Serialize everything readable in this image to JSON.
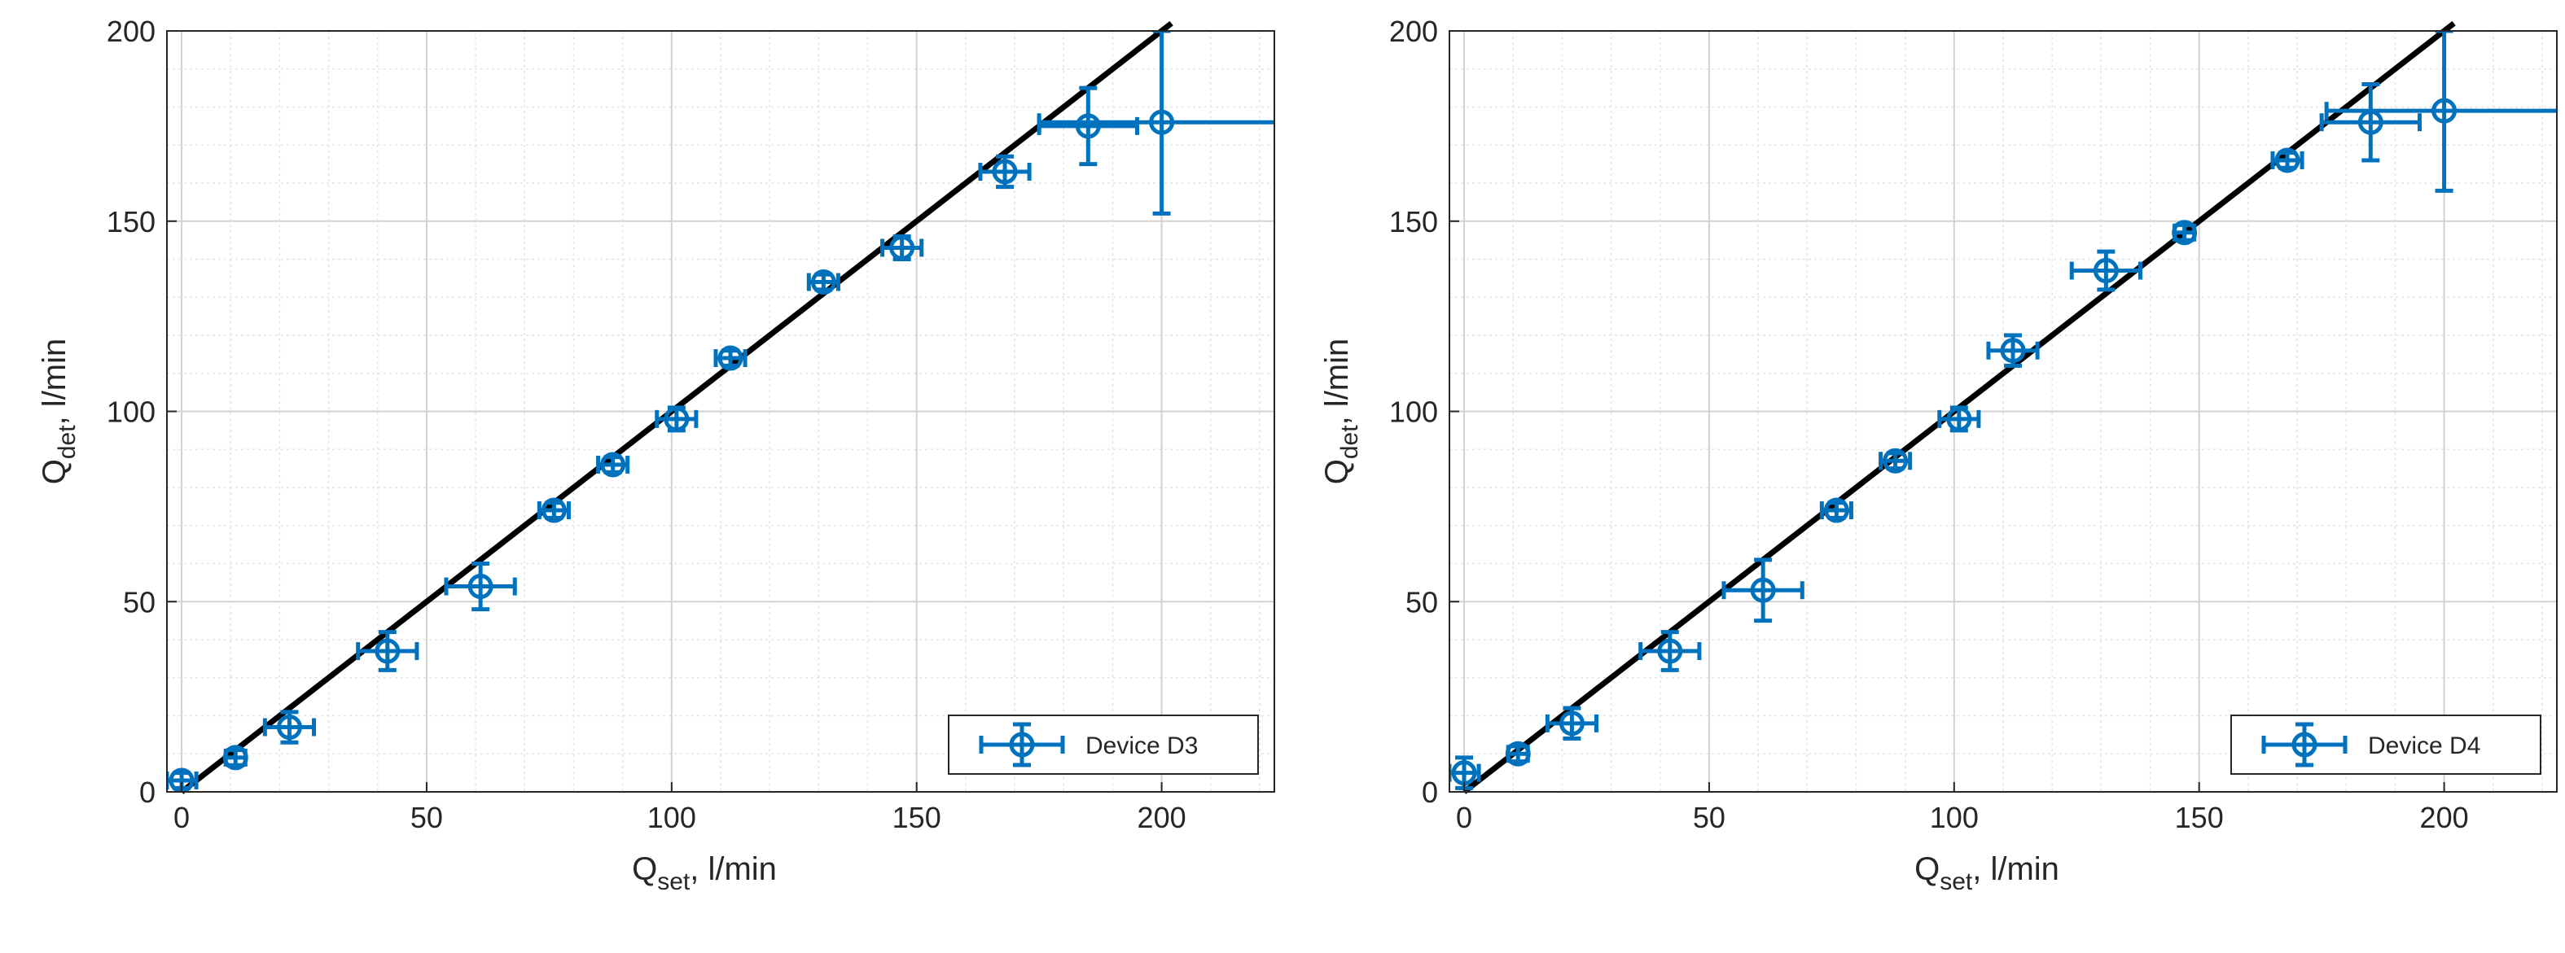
{
  "chart_data": [
    {
      "type": "scatter",
      "title": "",
      "xlabel": {
        "main": "Q",
        "sub": "set",
        "rest": ", l/min"
      },
      "ylabel": {
        "main": "Q",
        "sub": "det",
        "rest": ", l/min"
      },
      "xlim": [
        -3,
        223
      ],
      "ylim": [
        0,
        200
      ],
      "xticks": [
        0,
        50,
        100,
        150,
        200
      ],
      "yticks": [
        0,
        50,
        100,
        150,
        200
      ],
      "grid": true,
      "minor_grid": true,
      "legend_position": "bottom-right",
      "reference_line": {
        "name": "Q_det = Q_set",
        "color": "#000000",
        "from": [
          0,
          0
        ],
        "to": [
          202,
          202
        ]
      },
      "series": [
        {
          "name": "Device D3",
          "color": "#0072BD",
          "points": [
            {
              "x": 0,
              "y": 3,
              "xerr": 3,
              "yerr": 2
            },
            {
              "x": 11,
              "y": 9,
              "xerr": 2,
              "yerr": 2
            },
            {
              "x": 22,
              "y": 17,
              "xerr": 5,
              "yerr": 4
            },
            {
              "x": 42,
              "y": 37,
              "xerr": 6,
              "yerr": 5
            },
            {
              "x": 61,
              "y": 54,
              "xerr": 7,
              "yerr": 6
            },
            {
              "x": 76,
              "y": 74,
              "xerr": 3,
              "yerr": 2
            },
            {
              "x": 88,
              "y": 86,
              "xerr": 3,
              "yerr": 2
            },
            {
              "x": 101,
              "y": 98,
              "xerr": 4,
              "yerr": 3
            },
            {
              "x": 112,
              "y": 114,
              "xerr": 3,
              "yerr": 2
            },
            {
              "x": 131,
              "y": 134,
              "xerr": 3,
              "yerr": 2
            },
            {
              "x": 147,
              "y": 143,
              "xerr": 4,
              "yerr": 3
            },
            {
              "x": 168,
              "y": 163,
              "xerr": 5,
              "yerr": 4
            },
            {
              "x": 185,
              "y": 175,
              "xerr": 10,
              "yerr": 10
            },
            {
              "x": 200,
              "y": 176,
              "xerr": 25,
              "yerr": 24
            }
          ]
        }
      ]
    },
    {
      "type": "scatter",
      "title": "",
      "xlabel": {
        "main": "Q",
        "sub": "set",
        "rest": ", l/min"
      },
      "ylabel": {
        "main": "Q",
        "sub": "det",
        "rest": ", l/min"
      },
      "xlim": [
        -3,
        223
      ],
      "ylim": [
        0,
        200
      ],
      "xticks": [
        0,
        50,
        100,
        150,
        200
      ],
      "yticks": [
        0,
        50,
        100,
        150,
        200
      ],
      "grid": true,
      "minor_grid": true,
      "legend_position": "bottom-right",
      "reference_line": {
        "name": "Q_det = Q_set",
        "color": "#000000",
        "from": [
          0,
          0
        ],
        "to": [
          202,
          202
        ]
      },
      "series": [
        {
          "name": "Device D4",
          "color": "#0072BD",
          "points": [
            {
              "x": 0,
              "y": 5,
              "xerr": 3,
              "yerr": 4
            },
            {
              "x": 11,
              "y": 10,
              "xerr": 2,
              "yerr": 2
            },
            {
              "x": 22,
              "y": 18,
              "xerr": 5,
              "yerr": 4
            },
            {
              "x": 42,
              "y": 37,
              "xerr": 6,
              "yerr": 5
            },
            {
              "x": 61,
              "y": 53,
              "xerr": 8,
              "yerr": 8
            },
            {
              "x": 76,
              "y": 74,
              "xerr": 3,
              "yerr": 2
            },
            {
              "x": 88,
              "y": 87,
              "xerr": 3,
              "yerr": 2
            },
            {
              "x": 101,
              "y": 98,
              "xerr": 4,
              "yerr": 3
            },
            {
              "x": 112,
              "y": 116,
              "xerr": 5,
              "yerr": 4
            },
            {
              "x": 131,
              "y": 137,
              "xerr": 7,
              "yerr": 5
            },
            {
              "x": 147,
              "y": 147,
              "xerr": 2,
              "yerr": 2
            },
            {
              "x": 168,
              "y": 166,
              "xerr": 3,
              "yerr": 2
            },
            {
              "x": 185,
              "y": 176,
              "xerr": 10,
              "yerr": 10
            },
            {
              "x": 200,
              "y": 179,
              "xerr": 24,
              "yerr": 21
            }
          ]
        }
      ]
    }
  ]
}
